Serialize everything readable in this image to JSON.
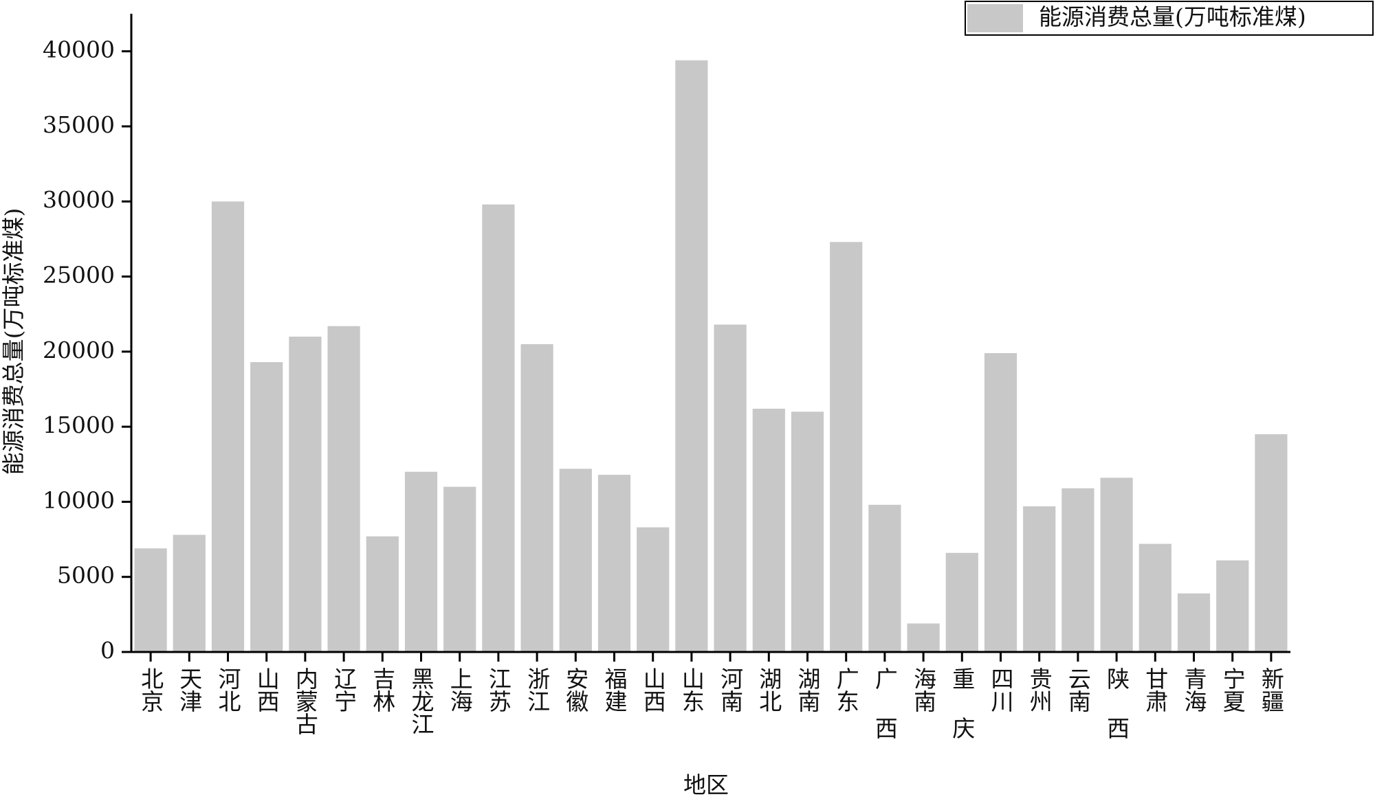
{
  "chart_data": {
    "type": "bar",
    "x_label": "地区",
    "y_label": "能源消费总量(万吨标准煤)",
    "categories": [
      "北京",
      "天津",
      "河北",
      "山西",
      "内蒙古",
      "辽宁",
      "吉林",
      "黑龙江",
      "上海",
      "江苏",
      "浙江",
      "安徽",
      "福建",
      "山西",
      "山东",
      "河南",
      "湖北",
      "湖南",
      "广东",
      "广 西",
      "海南",
      "重 庆",
      "四川",
      "贵州",
      "云南",
      "陕 西",
      "甘肃",
      "青海",
      "宁夏",
      "新疆"
    ],
    "series": [
      {
        "name": "能源消费总量(万吨标准煤)",
        "color": "#c8c8c8",
        "values": [
          6900,
          7800,
          30000,
          19300,
          21000,
          21700,
          7700,
          12000,
          11000,
          29800,
          20500,
          12200,
          11800,
          8300,
          39400,
          21800,
          16200,
          16000,
          27300,
          9800,
          1900,
          6600,
          19900,
          9700,
          10900,
          11600,
          7200,
          3900,
          6100,
          14500
        ]
      }
    ],
    "ylim": [
      0,
      42500
    ],
    "yticks": [
      0,
      5000,
      10000,
      15000,
      20000,
      25000,
      30000,
      35000,
      40000
    ],
    "grid": false,
    "legend": "top-right"
  }
}
